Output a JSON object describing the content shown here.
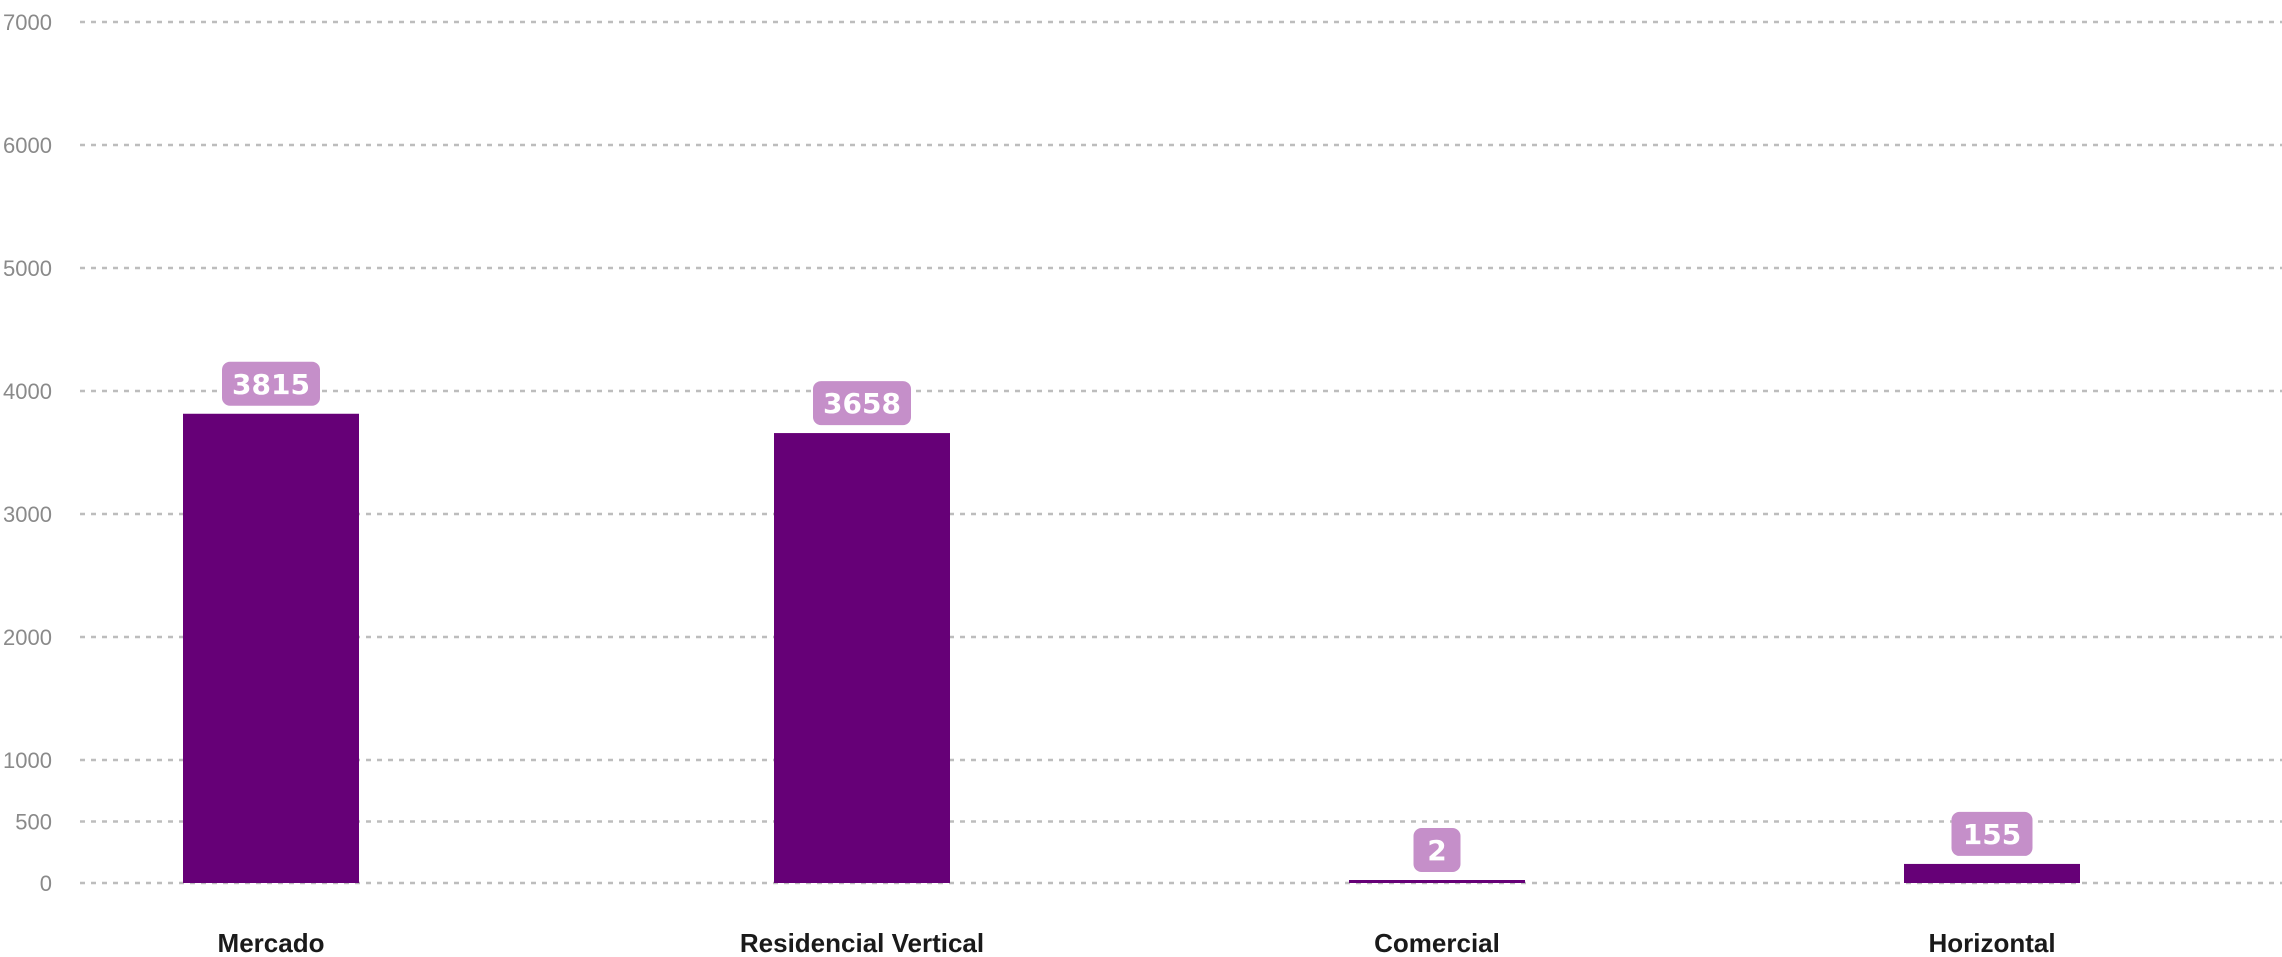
{
  "chart_data": {
    "type": "bar",
    "title": "",
    "xlabel": "",
    "ylabel": "",
    "categories": [
      "Mercado",
      "Residencial Vertical",
      "Comercial",
      "Horizontal"
    ],
    "values": [
      3815,
      3658,
      2,
      155
    ],
    "data_labels": [
      "3815",
      "3658",
      "2",
      "155"
    ],
    "yticks": [
      0,
      500,
      1000,
      2000,
      3000,
      4000,
      5000,
      6000,
      7000
    ],
    "ytick_labels": [
      "0",
      "500",
      "1000",
      "2000",
      "3000",
      "4000",
      "5000",
      "6000",
      "7000"
    ],
    "ylim": [
      0,
      7000
    ],
    "grid": true,
    "legend": "none",
    "colors": {
      "bar": "#660077",
      "data_label_bg": "#c58fc9",
      "grid": "#bdbdbd",
      "tick_text": "#8a8a8a",
      "category_text": "#1a1a1a"
    }
  }
}
